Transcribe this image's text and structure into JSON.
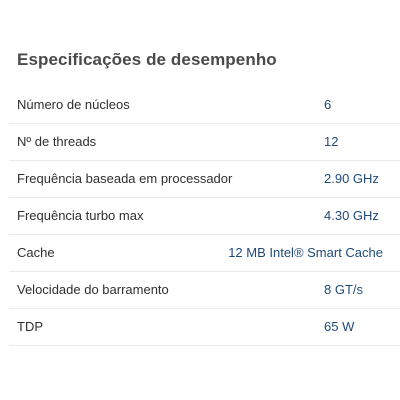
{
  "section": {
    "title": "Especificações de desempenho"
  },
  "specs": [
    {
      "label": "Número de núcleos",
      "value": "6"
    },
    {
      "label": "Nº de threads",
      "value": "12"
    },
    {
      "label": "Frequência baseada em processador",
      "value": "2.90 GHz"
    },
    {
      "label": "Frequência turbo max",
      "value": "4.30 GHz"
    },
    {
      "label": "Cache",
      "value": "12 MB Intel® Smart Cache"
    },
    {
      "label": "Velocidade do barramento",
      "value": "8 GT/s"
    },
    {
      "label": "TDP",
      "value": "65 W"
    }
  ],
  "colors": {
    "title": "#4a4a4a",
    "label": "#2f2f2f",
    "value": "#1f4a7a",
    "divider": "#e9e9e9"
  }
}
